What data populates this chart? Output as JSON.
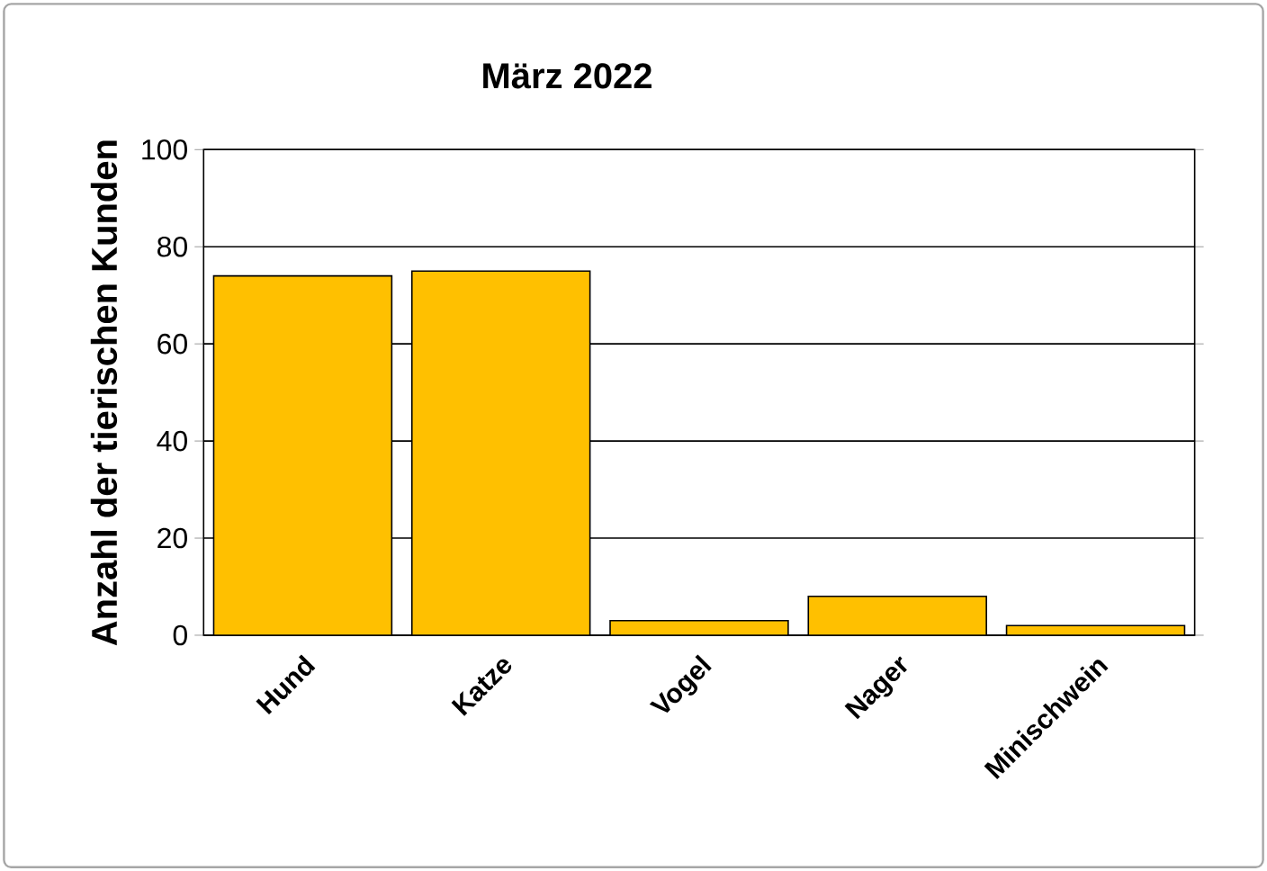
{
  "chart_data": {
    "type": "bar",
    "title": "März 2022",
    "ylabel": "Anzahl der tierischen Kunden",
    "categories": [
      "Hund",
      "Katze",
      "Vogel",
      "Nager",
      "Minischwein"
    ],
    "values": [
      74,
      75,
      3,
      8,
      2
    ],
    "color": "#ffc000",
    "ylim": [
      0,
      100
    ],
    "yticks": [
      0,
      20,
      40,
      60,
      80,
      100
    ],
    "grid": "y"
  }
}
